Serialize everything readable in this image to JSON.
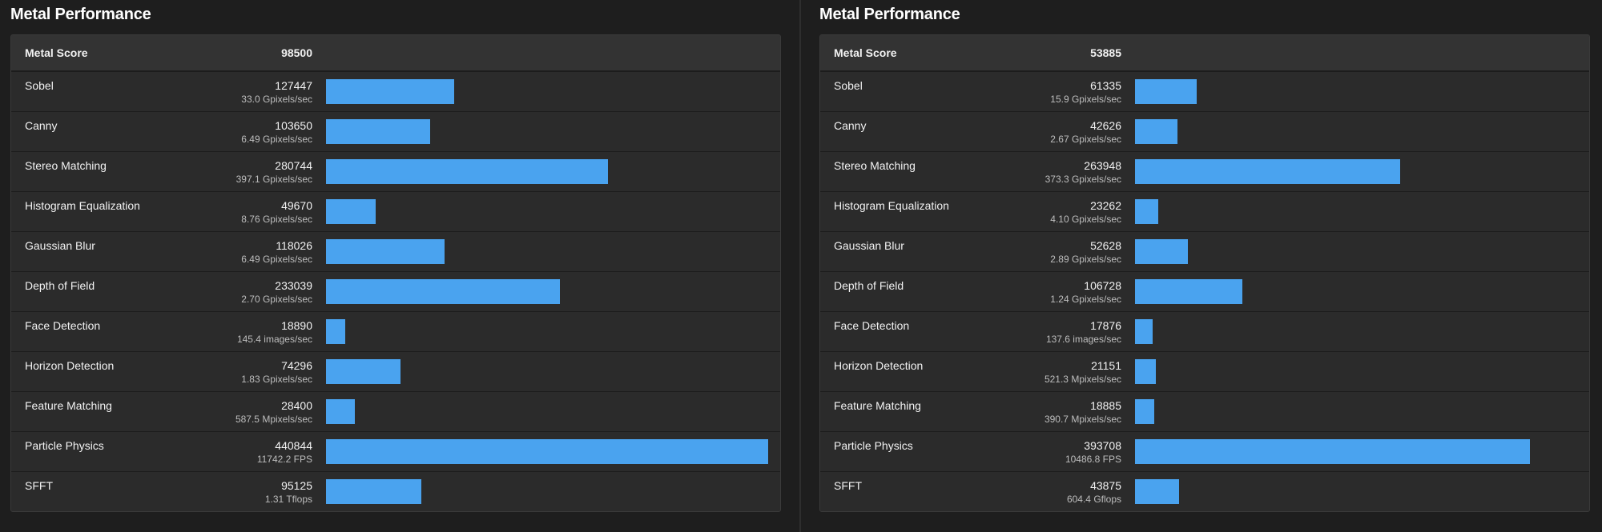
{
  "bar_color": "#4aa3ef",
  "bar_max_score": 440844,
  "panels": [
    {
      "title": "Metal Performance",
      "total": {
        "label": "Metal Score",
        "value": "98500"
      },
      "rows": [
        {
          "name": "Sobel",
          "score": 127447,
          "sub": "33.0 Gpixels/sec"
        },
        {
          "name": "Canny",
          "score": 103650,
          "sub": "6.49 Gpixels/sec"
        },
        {
          "name": "Stereo Matching",
          "score": 280744,
          "sub": "397.1 Gpixels/sec"
        },
        {
          "name": "Histogram Equalization",
          "score": 49670,
          "sub": "8.76 Gpixels/sec"
        },
        {
          "name": "Gaussian Blur",
          "score": 118026,
          "sub": "6.49 Gpixels/sec"
        },
        {
          "name": "Depth of Field",
          "score": 233039,
          "sub": "2.70 Gpixels/sec"
        },
        {
          "name": "Face Detection",
          "score": 18890,
          "sub": "145.4 images/sec"
        },
        {
          "name": "Horizon Detection",
          "score": 74296,
          "sub": "1.83 Gpixels/sec"
        },
        {
          "name": "Feature Matching",
          "score": 28400,
          "sub": "587.5 Mpixels/sec"
        },
        {
          "name": "Particle Physics",
          "score": 440844,
          "sub": "11742.2 FPS"
        },
        {
          "name": "SFFT",
          "score": 95125,
          "sub": "1.31 Tflops"
        }
      ]
    },
    {
      "title": "Metal Performance",
      "total": {
        "label": "Metal Score",
        "value": "53885"
      },
      "rows": [
        {
          "name": "Sobel",
          "score": 61335,
          "sub": "15.9 Gpixels/sec"
        },
        {
          "name": "Canny",
          "score": 42626,
          "sub": "2.67 Gpixels/sec"
        },
        {
          "name": "Stereo Matching",
          "score": 263948,
          "sub": "373.3 Gpixels/sec"
        },
        {
          "name": "Histogram Equalization",
          "score": 23262,
          "sub": "4.10 Gpixels/sec"
        },
        {
          "name": "Gaussian Blur",
          "score": 52628,
          "sub": "2.89 Gpixels/sec"
        },
        {
          "name": "Depth of Field",
          "score": 106728,
          "sub": "1.24 Gpixels/sec"
        },
        {
          "name": "Face Detection",
          "score": 17876,
          "sub": "137.6 images/sec"
        },
        {
          "name": "Horizon Detection",
          "score": 21151,
          "sub": "521.3 Mpixels/sec"
        },
        {
          "name": "Feature Matching",
          "score": 18885,
          "sub": "390.7 Mpixels/sec"
        },
        {
          "name": "Particle Physics",
          "score": 393708,
          "sub": "10486.8 FPS"
        },
        {
          "name": "SFFT",
          "score": 43875,
          "sub": "604.4 Gflops"
        }
      ]
    }
  ]
}
